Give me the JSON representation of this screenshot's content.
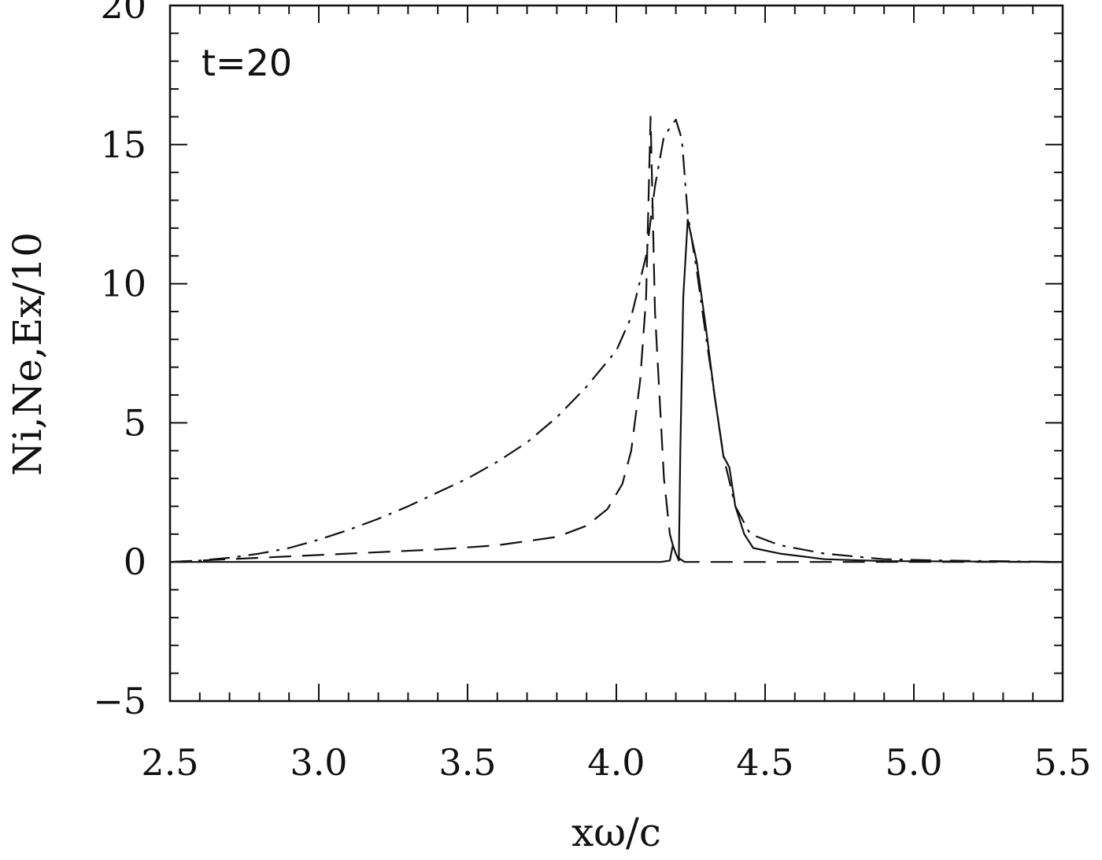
{
  "chart_data": {
    "type": "line",
    "xlabel": "xω/c",
    "ylabel": "Ni,Ne,Ex/10",
    "annotation": "t=20",
    "xlim": [
      2.5,
      5.5
    ],
    "ylim": [
      -5,
      20
    ],
    "x_ticks": [
      {
        "value": 2.5,
        "label": "2.5"
      },
      {
        "value": 3.0,
        "label": "3.0"
      },
      {
        "value": 3.5,
        "label": "3.5"
      },
      {
        "value": 4.0,
        "label": "4.0"
      },
      {
        "value": 4.5,
        "label": "4.5"
      },
      {
        "value": 5.0,
        "label": "5.0"
      },
      {
        "value": 5.5,
        "label": "5.5"
      }
    ],
    "y_ticks": [
      {
        "value": -5,
        "label": "−5"
      },
      {
        "value": 0,
        "label": "0"
      },
      {
        "value": 5,
        "label": "5"
      },
      {
        "value": 10,
        "label": "10"
      },
      {
        "value": 15,
        "label": "15"
      },
      {
        "value": 20,
        "label": "20"
      }
    ],
    "grid": false,
    "series": [
      {
        "line_style": "solid",
        "color": "#111111",
        "points": [
          [
            2.5,
            0
          ],
          [
            4.15,
            0
          ],
          [
            4.18,
            0.05
          ],
          [
            4.19,
            0.6
          ],
          [
            4.2,
            0.3
          ],
          [
            4.21,
            0.05
          ],
          [
            4.215,
            4.0
          ],
          [
            4.225,
            9.5
          ],
          [
            4.24,
            12.3
          ],
          [
            4.27,
            10.8
          ],
          [
            4.3,
            8.5
          ],
          [
            4.33,
            6.0
          ],
          [
            4.36,
            3.8
          ],
          [
            4.38,
            3.4
          ],
          [
            4.4,
            2.0
          ],
          [
            4.43,
            1.0
          ],
          [
            4.46,
            0.5
          ],
          [
            4.55,
            0.3
          ],
          [
            4.7,
            0.1
          ],
          [
            4.9,
            0.03
          ],
          [
            5.5,
            0
          ]
        ]
      },
      {
        "line_style": "dashed",
        "color": "#111111",
        "points": [
          [
            2.5,
            0
          ],
          [
            2.6,
            0.05
          ],
          [
            2.8,
            0.15
          ],
          [
            3.0,
            0.25
          ],
          [
            3.2,
            0.35
          ],
          [
            3.4,
            0.45
          ],
          [
            3.6,
            0.6
          ],
          [
            3.8,
            0.9
          ],
          [
            3.9,
            1.3
          ],
          [
            3.97,
            1.9
          ],
          [
            4.02,
            2.8
          ],
          [
            4.05,
            4.0
          ],
          [
            4.08,
            6.5
          ],
          [
            4.1,
            9.5
          ],
          [
            4.115,
            16.0
          ],
          [
            4.13,
            9.0
          ],
          [
            4.16,
            3.0
          ],
          [
            4.18,
            1.0
          ],
          [
            4.2,
            0.2
          ],
          [
            4.23,
            0
          ],
          [
            5.5,
            0
          ]
        ]
      },
      {
        "line_style": "dashdot",
        "color": "#111111",
        "points": [
          [
            2.5,
            0
          ],
          [
            2.6,
            0.05
          ],
          [
            2.7,
            0.15
          ],
          [
            2.8,
            0.3
          ],
          [
            2.9,
            0.5
          ],
          [
            3.0,
            0.8
          ],
          [
            3.1,
            1.15
          ],
          [
            3.2,
            1.55
          ],
          [
            3.3,
            2.0
          ],
          [
            3.4,
            2.5
          ],
          [
            3.5,
            3.0
          ],
          [
            3.6,
            3.6
          ],
          [
            3.7,
            4.3
          ],
          [
            3.8,
            5.2
          ],
          [
            3.9,
            6.3
          ],
          [
            4.0,
            7.6
          ],
          [
            4.05,
            8.8
          ],
          [
            4.1,
            11.0
          ],
          [
            4.13,
            13.5
          ],
          [
            4.16,
            15.3
          ],
          [
            4.2,
            15.9
          ],
          [
            4.22,
            15.2
          ],
          [
            4.24,
            12.5
          ],
          [
            4.27,
            10.5
          ],
          [
            4.3,
            8.2
          ],
          [
            4.33,
            6.0
          ],
          [
            4.36,
            3.8
          ],
          [
            4.4,
            2.0
          ],
          [
            4.45,
            1.0
          ],
          [
            4.55,
            0.6
          ],
          [
            4.7,
            0.3
          ],
          [
            4.9,
            0.1
          ],
          [
            5.1,
            0.05
          ],
          [
            5.5,
            0
          ]
        ]
      }
    ]
  }
}
